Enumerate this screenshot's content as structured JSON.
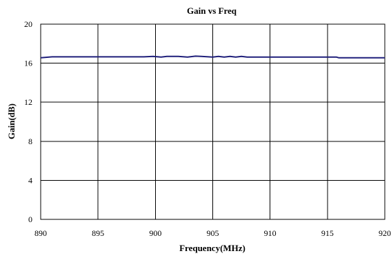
{
  "chart_data": {
    "type": "line",
    "title": "Gain vs Freq",
    "xlabel": "Frequency(MHz)",
    "ylabel": "Gain(dB)",
    "xlim": [
      890,
      920
    ],
    "ylim": [
      0,
      20
    ],
    "xticks": [
      890,
      895,
      900,
      905,
      910,
      915,
      920
    ],
    "yticks": [
      0,
      4,
      8,
      12,
      16,
      20
    ],
    "grid": true,
    "legend": "none",
    "series": [
      {
        "color": "#1f1f7a",
        "x": [
          890,
          891,
          892,
          893,
          894,
          895,
          896,
          897,
          898,
          899,
          899.8,
          900.5,
          901,
          902,
          902.8,
          903.5,
          904,
          905,
          905.5,
          906,
          906.5,
          907,
          907.5,
          908,
          909,
          910,
          911,
          912,
          913,
          914,
          915,
          915.8,
          916,
          917,
          918,
          919,
          920
        ],
        "y": [
          16.55,
          16.65,
          16.65,
          16.65,
          16.65,
          16.65,
          16.65,
          16.65,
          16.65,
          16.65,
          16.7,
          16.62,
          16.7,
          16.7,
          16.62,
          16.72,
          16.7,
          16.62,
          16.7,
          16.62,
          16.7,
          16.62,
          16.7,
          16.62,
          16.62,
          16.62,
          16.62,
          16.62,
          16.62,
          16.62,
          16.62,
          16.62,
          16.55,
          16.55,
          16.55,
          16.55,
          16.55
        ]
      }
    ]
  }
}
